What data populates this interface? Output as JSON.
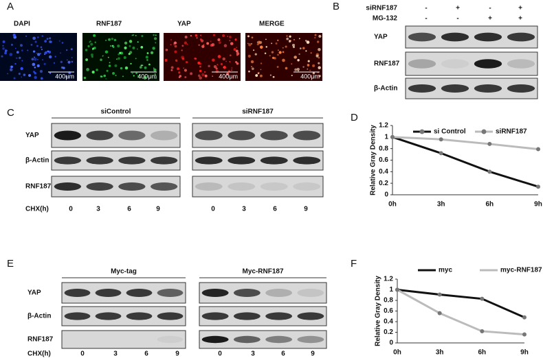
{
  "panel_a": {
    "label": "A",
    "images": [
      {
        "title": "DAPI",
        "scale": "400μm"
      },
      {
        "title": "RNF187",
        "scale": "400μm"
      },
      {
        "title": "YAP",
        "scale": "400μm"
      },
      {
        "title": "MERGE",
        "scale": "400μm"
      }
    ]
  },
  "panel_b": {
    "label": "B",
    "treatments": [
      {
        "name": "siRNF187",
        "signs": [
          "-",
          "+",
          "-",
          "+"
        ]
      },
      {
        "name": "MG-132",
        "signs": [
          "-",
          "-",
          "+",
          "+"
        ]
      }
    ],
    "rows": [
      "YAP",
      "RNF187",
      "β-Actin"
    ]
  },
  "panel_c": {
    "label": "C",
    "groups": [
      "siControl",
      "siRNF187"
    ],
    "rows": [
      "YAP",
      "β-Actin",
      "RNF187"
    ],
    "x_label": "CHX(h)",
    "times": [
      "0",
      "3",
      "6",
      "9",
      "0",
      "3",
      "6",
      "9"
    ]
  },
  "panel_e": {
    "label": "E",
    "groups": [
      "Myc-tag",
      "Myc-RNF187"
    ],
    "rows": [
      "YAP",
      "β-Actin",
      "RNF187"
    ],
    "x_label": "CHX(h)",
    "times": [
      "0",
      "3",
      "6",
      "9",
      "0",
      "3",
      "6",
      "9"
    ]
  },
  "chart_data": [
    {
      "type": "line",
      "label": "D",
      "y_label": "Relative Gray Density",
      "categories": [
        "0h",
        "3h",
        "6h",
        "9h"
      ],
      "ylim": [
        0,
        1.2
      ],
      "yticks": [
        0,
        0.2,
        0.4,
        0.6,
        0.8,
        1,
        1.2
      ],
      "series": [
        {
          "name": "si Control",
          "color": "#111111",
          "values": [
            1,
            0.72,
            0.4,
            0.14
          ]
        },
        {
          "name": "siRNF187",
          "color": "#bbbbbb",
          "values": [
            1,
            0.96,
            0.88,
            0.79
          ]
        }
      ]
    },
    {
      "type": "line",
      "label": "F",
      "y_label": "Relative Gray Density",
      "categories": [
        "0h",
        "3h",
        "6h",
        "9h"
      ],
      "ylim": [
        0,
        1.2
      ],
      "yticks": [
        0,
        0.2,
        0.4,
        0.6,
        0.8,
        1,
        1.2
      ],
      "series": [
        {
          "name": "myc",
          "color": "#111111",
          "values": [
            1,
            0.91,
            0.83,
            0.48
          ]
        },
        {
          "name": "myc-RNF187",
          "color": "#bbbbbb",
          "values": [
            1,
            0.56,
            0.22,
            0.16
          ]
        }
      ]
    }
  ]
}
